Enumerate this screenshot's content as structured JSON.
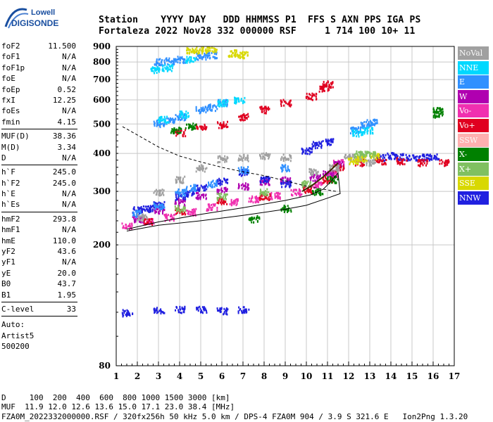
{
  "logo": {
    "line1": "Lowell",
    "line2": "DIGISONDE",
    "color": "#1a4fa0"
  },
  "header": {
    "labels": "Station    YYYY DAY   DDD HHMMSS P1  FFS S AXN PPS IGA PS",
    "values": "Fortaleza 2022 Nov28 332 000000 RSF     1 714 100 10+ 11"
  },
  "params_group1": [
    {
      "k": "foF2",
      "v": "11.500"
    },
    {
      "k": "foF1",
      "v": "N/A"
    },
    {
      "k": "foF1p",
      "v": "N/A"
    },
    {
      "k": "foE",
      "v": "N/A"
    },
    {
      "k": "foEp",
      "v": "0.52"
    },
    {
      "k": "fxI",
      "v": "12.25"
    },
    {
      "k": "foEs",
      "v": "N/A"
    },
    {
      "k": "fmin",
      "v": "4.15"
    }
  ],
  "params_group2": [
    {
      "k": "MUF(D)",
      "v": "38.36"
    },
    {
      "k": "M(D)",
      "v": "3.34"
    },
    {
      "k": "D",
      "v": "N/A"
    }
  ],
  "params_group3": [
    {
      "k": "h`F",
      "v": "245.0"
    },
    {
      "k": "h`F2",
      "v": "245.0"
    },
    {
      "k": "h`E",
      "v": "N/A"
    },
    {
      "k": "h`Es",
      "v": "N/A"
    }
  ],
  "params_group4": [
    {
      "k": "hmF2",
      "v": "293.8"
    },
    {
      "k": "hmF1",
      "v": "N/A"
    },
    {
      "k": "hmE",
      "v": "110.0"
    },
    {
      "k": "yF2",
      "v": "43.6"
    },
    {
      "k": "yF1",
      "v": "N/A"
    },
    {
      "k": "yE",
      "v": "20.0"
    },
    {
      "k": "B0",
      "v": "43.7"
    },
    {
      "k": "B1",
      "v": "1.95"
    }
  ],
  "params_group5": [
    {
      "k": "C-level",
      "v": "33"
    }
  ],
  "auto": {
    "line1": "Auto:",
    "line2": "Artist5",
    "line3": "500200"
  },
  "legend": [
    {
      "label": "NoVal",
      "color": "#a0a0a0"
    },
    {
      "label": "NNE",
      "color": "#00d8ff"
    },
    {
      "label": "E",
      "color": "#3090ff"
    },
    {
      "label": "W",
      "color": "#b000b0"
    },
    {
      "label": "Vo-",
      "color": "#f030b0"
    },
    {
      "label": "Vo+",
      "color": "#e00020"
    },
    {
      "label": "SSW",
      "color": "#ffb0b0"
    },
    {
      "label": "X-",
      "color": "#008000"
    },
    {
      "label": "X+",
      "color": "#80c060"
    },
    {
      "label": "SSE",
      "color": "#d8d800"
    },
    {
      "label": "NNW",
      "color": "#2020e0"
    }
  ],
  "footer": {
    "line1": "D     100  200  400  600  800 1000 1500 3000 [km]",
    "line2": "MUF  11.9 12.0 12.6 13.6 15.0 17.1 23.0 38.4 [MHz]",
    "line3": "FZA0M_2022332000000.RSF / 320fx256h 50 kHz 5.0 km / DPS-4 FZA0M 904 / 3.9 S 321.6 E   Ion2Png 1.3.20"
  },
  "chart_data": {
    "type": "scatter",
    "xlim": [
      1,
      17
    ],
    "ylim": [
      80,
      900
    ],
    "y_scale": "log",
    "x_ticks": [
      1,
      2,
      3,
      4,
      5,
      6,
      7,
      8,
      9,
      10,
      11,
      12,
      13,
      14,
      15,
      16,
      17
    ],
    "y_ticks": [
      80,
      200,
      300,
      400,
      500,
      600,
      700,
      800,
      900
    ],
    "grid": true,
    "legend_placement": "right",
    "series": [
      {
        "color": "#f030b0",
        "points": [
          [
            1.5,
            232
          ],
          [
            2.5,
            240
          ],
          [
            3.5,
            248
          ],
          [
            4.5,
            258
          ],
          [
            5.5,
            268
          ],
          [
            6.5,
            278
          ],
          [
            7.5,
            285
          ],
          [
            8.5,
            292
          ],
          [
            9.5,
            300
          ],
          [
            10.5,
            318
          ],
          [
            11.2,
            345
          ],
          [
            11.5,
            375
          ]
        ]
      },
      {
        "color": "#b000b0",
        "points": [
          [
            2,
            245
          ],
          [
            3,
            262
          ],
          [
            4,
            278
          ],
          [
            5,
            292
          ],
          [
            6,
            305
          ],
          [
            7,
            314
          ],
          [
            8,
            325
          ],
          [
            9,
            328
          ],
          [
            10.4,
            335
          ],
          [
            11,
            345
          ],
          [
            11.5,
            370
          ]
        ]
      },
      {
        "color": "#2020e0",
        "points": [
          [
            2,
            262
          ],
          [
            2.5,
            265
          ],
          [
            3,
            272
          ],
          [
            4,
            290
          ],
          [
            4.5,
            298
          ],
          [
            5,
            310
          ],
          [
            6,
            325
          ],
          [
            7,
            348
          ],
          [
            8,
            330
          ],
          [
            9,
            320
          ],
          [
            10,
            410
          ],
          [
            10.5,
            430
          ],
          [
            11,
            440
          ],
          [
            13.5,
            390
          ],
          [
            14,
            395
          ],
          [
            14.5,
            392
          ],
          [
            15,
            390
          ],
          [
            15.5,
            390
          ],
          [
            16,
            392
          ],
          [
            1.5,
            120
          ],
          [
            3,
            122
          ],
          [
            4,
            123
          ],
          [
            5,
            123
          ],
          [
            6,
            122
          ],
          [
            7,
            123
          ]
        ]
      },
      {
        "color": "#3090ff",
        "points": [
          [
            2,
            255
          ],
          [
            3,
            270
          ],
          [
            4,
            300
          ],
          [
            4.5,
            310
          ],
          [
            5.5,
            320
          ],
          [
            7,
            355
          ],
          [
            9,
            360
          ],
          [
            12.3,
            480
          ],
          [
            12.8,
            500
          ],
          [
            13.1,
            510
          ],
          [
            3,
            805
          ],
          [
            3.5,
            810
          ],
          [
            4,
            820
          ],
          [
            5,
            840
          ],
          [
            5.5,
            850
          ],
          [
            3,
            505
          ],
          [
            3.5,
            515
          ],
          [
            4,
            530
          ],
          [
            5,
            560
          ],
          [
            5.5,
            570
          ],
          [
            6,
            590
          ]
        ]
      },
      {
        "color": "#e00020",
        "points": [
          [
            2.5,
            240
          ],
          [
            4,
            260
          ],
          [
            6,
            280
          ],
          [
            8,
            290
          ],
          [
            10,
            305
          ],
          [
            11,
            330
          ],
          [
            11.5,
            360
          ],
          [
            12.5,
            375
          ],
          [
            13.5,
            380
          ],
          [
            14.5,
            380
          ],
          [
            15.5,
            375
          ],
          [
            16.5,
            375
          ],
          [
            4,
            470
          ],
          [
            5,
            490
          ],
          [
            6,
            500
          ],
          [
            7,
            530
          ],
          [
            8,
            560
          ],
          [
            9,
            590
          ],
          [
            10.2,
            620
          ],
          [
            10.8,
            660
          ],
          [
            11,
            680
          ]
        ]
      },
      {
        "color": "#a0a0a0",
        "points": [
          [
            2.2,
            248
          ],
          [
            3,
            300
          ],
          [
            4,
            330
          ],
          [
            5,
            360
          ],
          [
            6,
            385
          ],
          [
            7,
            390
          ],
          [
            8,
            395
          ],
          [
            9,
            390
          ],
          [
            10.3,
            350
          ],
          [
            11.3,
            360
          ],
          [
            12,
            390
          ],
          [
            12.5,
            385
          ],
          [
            13,
            375
          ]
        ]
      },
      {
        "color": "#d8d800",
        "points": [
          [
            4.5,
            875
          ],
          [
            5,
            880
          ],
          [
            5.5,
            890
          ],
          [
            6.5,
            860
          ],
          [
            7,
            850
          ],
          [
            12.2,
            380
          ],
          [
            12.6,
            388
          ],
          [
            13.2,
            395
          ]
        ]
      },
      {
        "color": "#008000",
        "points": [
          [
            3.8,
            480
          ],
          [
            4.5,
            495
          ],
          [
            16.2,
            540
          ],
          [
            16.2,
            555
          ],
          [
            7.5,
            245
          ],
          [
            9,
            265
          ],
          [
            10.5,
            300
          ],
          [
            11.2,
            330
          ]
        ]
      },
      {
        "color": "#80c060",
        "points": [
          [
            4,
            265
          ],
          [
            6,
            290
          ],
          [
            8,
            300
          ],
          [
            10,
            320
          ],
          [
            12.5,
            400
          ],
          [
            13,
            400
          ]
        ]
      },
      {
        "color": "#00d8ff",
        "points": [
          [
            2.8,
            760
          ],
          [
            3.4,
            770
          ],
          [
            4.5,
            820
          ],
          [
            3.2,
            520
          ],
          [
            4.2,
            540
          ],
          [
            6,
            590
          ],
          [
            6.8,
            600
          ],
          [
            12.4,
            470
          ],
          [
            12.9,
            480
          ]
        ]
      }
    ]
  }
}
